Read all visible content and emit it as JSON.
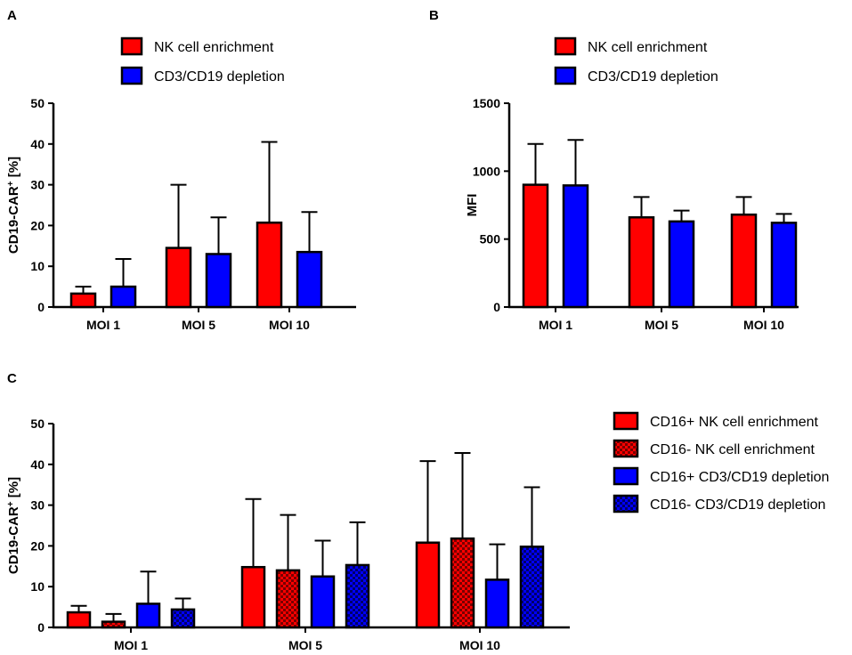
{
  "colors": {
    "red": "#ff0000",
    "blue": "#0000ff",
    "red_check_dark": "#7a0000",
    "blue_check_dark": "#00006b"
  },
  "chart_data": [
    {
      "panel": "A",
      "type": "bar",
      "ylabel": "CD19-CAR",
      "ylabel_sup": "+",
      "ylabel_suffix": " [%]",
      "ylim": [
        0,
        50
      ],
      "yticks": [
        "0",
        "10",
        "20",
        "30",
        "40",
        "50"
      ],
      "categories": [
        "MOI 1",
        "MOI 5",
        "MOI 10"
      ],
      "series": [
        {
          "name": "NK cell enrichment",
          "color": "red",
          "pattern": "solid",
          "values": [
            3.3,
            14.5,
            20.7
          ],
          "error_upper": [
            5.0,
            30.0,
            40.5
          ]
        },
        {
          "name": "CD3/CD19 depletion",
          "color": "blue",
          "pattern": "solid",
          "values": [
            5.0,
            13.0,
            13.5
          ],
          "error_upper": [
            11.8,
            22.0,
            23.3
          ]
        }
      ]
    },
    {
      "panel": "B",
      "type": "bar",
      "ylabel": "MFI",
      "ylabel_sup": "",
      "ylabel_suffix": "",
      "ylim": [
        0,
        1500
      ],
      "yticks": [
        "0",
        "500",
        "1000",
        "1500"
      ],
      "categories": [
        "MOI 1",
        "MOI 5",
        "MOI 10"
      ],
      "series": [
        {
          "name": "NK cell enrichment",
          "color": "red",
          "pattern": "solid",
          "values": [
            900,
            660,
            680
          ],
          "error_upper": [
            1200,
            810,
            810
          ]
        },
        {
          "name": "CD3/CD19 depletion",
          "color": "blue",
          "pattern": "solid",
          "values": [
            895,
            630,
            620
          ],
          "error_upper": [
            1230,
            710,
            685
          ]
        }
      ]
    },
    {
      "panel": "C",
      "type": "bar",
      "ylabel": "CD19-CAR",
      "ylabel_sup": "+",
      "ylabel_suffix": " [%]",
      "ylim": [
        0,
        50
      ],
      "yticks": [
        "0",
        "10",
        "20",
        "30",
        "40",
        "50"
      ],
      "categories": [
        "MOI 1",
        "MOI 5",
        "MOI 10"
      ],
      "series": [
        {
          "name": "CD16+ NK cell enrichment",
          "color": "red",
          "pattern": "solid",
          "values": [
            3.7,
            14.8,
            20.8
          ],
          "error_upper": [
            5.3,
            31.5,
            40.8
          ]
        },
        {
          "name": "CD16- NK cell enrichment",
          "color": "red",
          "pattern": "check",
          "values": [
            1.4,
            14.0,
            21.8
          ],
          "error_upper": [
            3.3,
            27.6,
            42.8
          ]
        },
        {
          "name": "CD16+ CD3/CD19 depletion",
          "color": "blue",
          "pattern": "solid",
          "values": [
            5.8,
            12.5,
            11.7
          ],
          "error_upper": [
            13.7,
            21.3,
            20.4
          ]
        },
        {
          "name": "CD16- CD3/CD19 depletion",
          "color": "blue",
          "pattern": "check",
          "values": [
            4.4,
            15.3,
            19.8
          ],
          "error_upper": [
            7.1,
            25.8,
            34.4
          ]
        }
      ]
    }
  ]
}
